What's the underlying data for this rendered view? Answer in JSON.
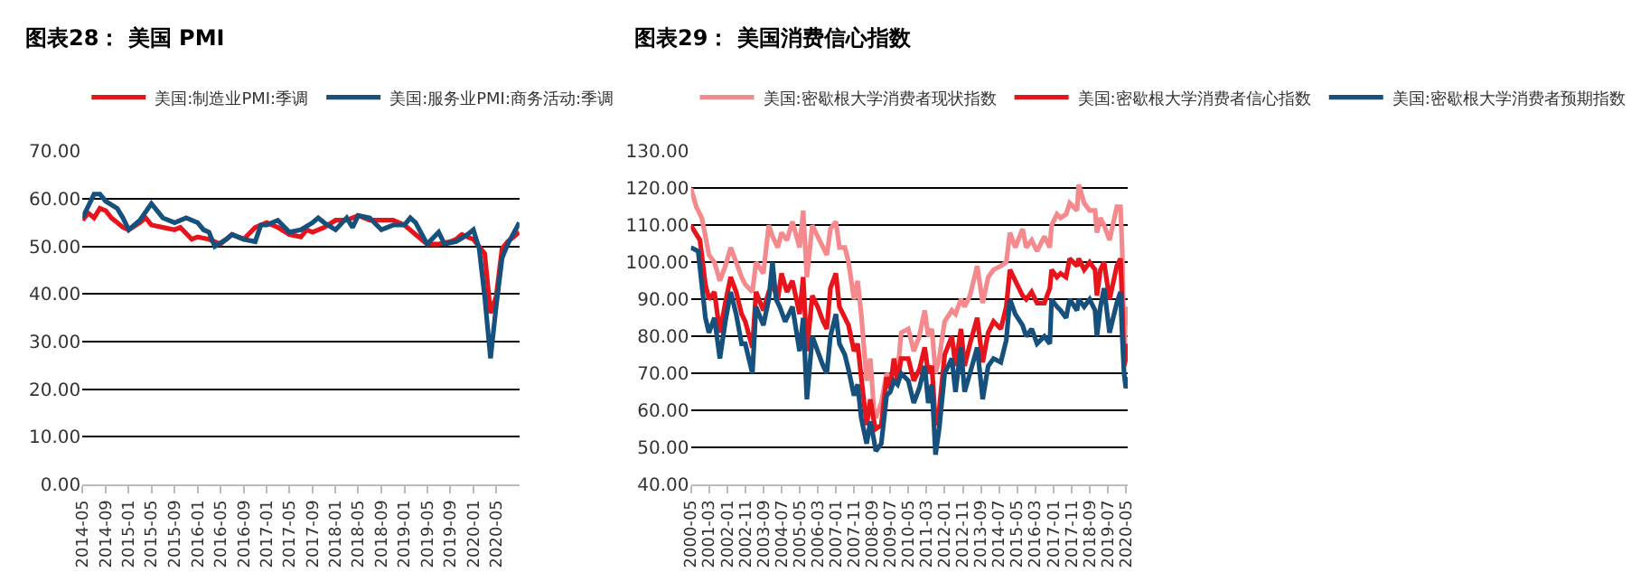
{
  "chart_data": [
    {
      "type": "line",
      "title": "图表28： 美国 PMI",
      "legend": "top",
      "grid": "y",
      "marker": "none",
      "line_style": "solid",
      "xlim": [
        "2014-05",
        "2020-09"
      ],
      "xticks": [
        "2014-05",
        "2014-09",
        "2015-01",
        "2015-05",
        "2015-09",
        "2016-01",
        "2016-05",
        "2016-09",
        "2017-01",
        "2017-05",
        "2017-09",
        "2018-01",
        "2018-05",
        "2018-09",
        "2019-01",
        "2019-05",
        "2019-09",
        "2020-01",
        "2020-05"
      ],
      "ylim": [
        0,
        70
      ],
      "yticks": [
        {
          "value": 0,
          "label": "0.00"
        },
        {
          "value": 10,
          "label": "10.00"
        },
        {
          "value": 20,
          "label": "20.00"
        },
        {
          "value": 30,
          "label": "30.00"
        },
        {
          "value": 40,
          "label": "40.00"
        },
        {
          "value": 50,
          "label": "50.00"
        },
        {
          "value": 60,
          "label": "60.00"
        },
        {
          "value": 70,
          "label": "70.00"
        }
      ],
      "series": [
        {
          "name": "美国:制造业PMI:季调",
          "color": "#e8141c",
          "x": [
            "2014-05",
            "2014-06",
            "2014-07",
            "2014-08",
            "2014-09",
            "2014-10",
            "2014-11",
            "2014-12",
            "2015-01",
            "2015-03",
            "2015-04",
            "2015-05",
            "2015-07",
            "2015-09",
            "2015-10",
            "2015-12",
            "2016-01",
            "2016-03",
            "2016-05",
            "2016-07",
            "2016-09",
            "2016-11",
            "2017-01",
            "2017-03",
            "2017-05",
            "2017-07",
            "2017-08",
            "2017-09",
            "2017-11",
            "2018-01",
            "2018-03",
            "2018-05",
            "2018-07",
            "2018-09",
            "2018-11",
            "2019-01",
            "2019-03",
            "2019-05",
            "2019-07",
            "2019-09",
            "2019-10",
            "2019-11",
            "2020-01",
            "2020-03",
            "2020-04",
            "2020-05",
            "2020-06",
            "2020-07",
            "2020-09"
          ],
          "values": [
            55.5,
            57,
            56,
            58,
            57.5,
            56,
            55,
            54,
            53.5,
            55,
            56,
            54.5,
            54,
            53.5,
            54,
            51.5,
            52,
            51.5,
            50.5,
            52.5,
            51.5,
            54,
            55,
            54,
            52.5,
            52,
            53.5,
            53,
            54,
            55.5,
            55.5,
            56.5,
            55.5,
            55.5,
            55.5,
            54.5,
            52.5,
            50.5,
            50.5,
            51,
            51.5,
            52.5,
            51.5,
            48.5,
            36,
            39.5,
            49.5,
            51,
            53
          ]
        },
        {
          "name": "美国:服务业PMI:商务活动:季调",
          "color": "#16507c",
          "x": [
            "2014-05",
            "2014-06",
            "2014-07",
            "2014-08",
            "2014-09",
            "2014-11",
            "2014-12",
            "2015-01",
            "2015-03",
            "2015-05",
            "2015-07",
            "2015-09",
            "2015-11",
            "2016-01",
            "2016-02",
            "2016-03",
            "2016-04",
            "2016-06",
            "2016-07",
            "2016-09",
            "2016-11",
            "2016-12",
            "2017-01",
            "2017-03",
            "2017-05",
            "2017-07",
            "2017-09",
            "2017-10",
            "2017-11",
            "2018-01",
            "2018-03",
            "2018-04",
            "2018-05",
            "2018-07",
            "2018-09",
            "2018-11",
            "2019-01",
            "2019-02",
            "2019-03",
            "2019-05",
            "2019-07",
            "2019-08",
            "2019-10",
            "2019-12",
            "2020-01",
            "2020-02",
            "2020-03",
            "2020-04",
            "2020-05",
            "2020-06",
            "2020-07",
            "2020-09"
          ],
          "values": [
            56,
            58.5,
            61,
            61,
            59.5,
            58,
            56,
            53.5,
            55.5,
            59,
            56,
            55,
            56,
            55,
            53.5,
            53,
            50,
            51.5,
            52.5,
            51.5,
            51,
            54.5,
            54.5,
            55.5,
            53,
            53.5,
            55,
            56,
            55,
            53.5,
            56,
            54,
            56.5,
            56,
            53.5,
            54.5,
            54.5,
            56,
            55,
            50.5,
            53,
            50.5,
            51,
            52.5,
            53.5,
            49.5,
            39.5,
            26.5,
            37.5,
            47.5,
            50.5,
            55
          ]
        }
      ]
    },
    {
      "type": "line",
      "title": "图表29： 美国消费信心指数",
      "legend": "top",
      "grid": "y",
      "marker": "none",
      "line_style": "solid",
      "xlim": [
        "2000-05",
        "2020-06"
      ],
      "xticks": [
        "2000-05",
        "2001-03",
        "2002-01",
        "2002-11",
        "2003-09",
        "2004-07",
        "2005-05",
        "2006-03",
        "2007-01",
        "2007-11",
        "2008-09",
        "2009-07",
        "2010-05",
        "2011-03",
        "2012-01",
        "2012-11",
        "2013-09",
        "2014-07",
        "2015-05",
        "2016-03",
        "2017-01",
        "2017-11",
        "2018-09",
        "2019-07",
        "2020-05"
      ],
      "ylim": [
        40,
        130
      ],
      "yticks": [
        {
          "value": 40,
          "label": "40.00"
        },
        {
          "value": 50,
          "label": "50.00"
        },
        {
          "value": 60,
          "label": "60.00"
        },
        {
          "value": 70,
          "label": "70.00"
        },
        {
          "value": 80,
          "label": "80.00"
        },
        {
          "value": 90,
          "label": "90.00"
        },
        {
          "value": 100,
          "label": "100.00"
        },
        {
          "value": 110,
          "label": "110.00"
        },
        {
          "value": 120,
          "label": "120.00"
        },
        {
          "value": 130,
          "label": "130.00"
        }
      ],
      "series": [
        {
          "name": "美国:密歇根大学消费者现状指数",
          "color": "#f48a8e",
          "x": [
            "2000-05",
            "2000-08",
            "2000-11",
            "2001-01",
            "2001-03",
            "2001-06",
            "2001-09",
            "2001-12",
            "2002-03",
            "2002-06",
            "2002-09",
            "2002-11",
            "2003-03",
            "2003-05",
            "2003-09",
            "2003-12",
            "2004-02",
            "2004-05",
            "2004-07",
            "2004-10",
            "2005-01",
            "2005-05",
            "2005-07",
            "2005-09",
            "2005-12",
            "2006-03",
            "2006-06",
            "2006-08",
            "2006-10",
            "2007-01",
            "2007-03",
            "2007-06",
            "2007-08",
            "2007-11",
            "2008-01",
            "2008-03",
            "2008-06",
            "2008-08",
            "2008-10",
            "2008-11",
            "2009-02",
            "2009-05",
            "2009-07",
            "2009-09",
            "2009-11",
            "2010-01",
            "2010-05",
            "2010-08",
            "2010-11",
            "2011-02",
            "2011-04",
            "2011-06",
            "2011-08",
            "2011-10",
            "2012-01",
            "2012-05",
            "2012-07",
            "2012-10",
            "2012-12",
            "2013-03",
            "2013-07",
            "2013-10",
            "2014-01",
            "2014-04",
            "2014-08",
            "2014-11",
            "2015-01",
            "2015-04",
            "2015-08",
            "2015-10",
            "2016-01",
            "2016-04",
            "2016-08",
            "2016-11",
            "2016-12",
            "2017-03",
            "2017-05",
            "2017-08",
            "2017-10",
            "2018-02",
            "2018-03",
            "2018-06",
            "2018-09",
            "2018-12",
            "2019-01",
            "2019-03",
            "2019-05",
            "2019-08",
            "2019-12",
            "2020-02",
            "2020-03",
            "2020-04",
            "2020-05",
            "2020-06"
          ],
          "values": [
            120,
            115,
            112,
            107,
            102,
            100,
            95,
            99,
            104,
            100,
            96,
            94,
            92,
            100,
            97,
            110,
            107,
            104,
            108,
            106,
            111,
            104,
            114,
            96,
            110,
            107,
            104,
            102,
            109,
            111,
            104,
            104,
            100,
            90,
            95,
            86,
            68,
            74,
            60,
            58,
            62,
            70,
            68,
            72,
            70,
            81,
            82,
            76,
            80,
            87,
            80,
            82,
            70,
            74,
            84,
            87,
            86,
            90,
            88,
            91,
            99,
            89,
            96,
            98,
            99,
            100,
            108,
            104,
            109,
            104,
            106,
            103,
            107,
            104,
            110,
            113,
            112,
            113,
            116,
            114,
            121,
            116,
            114,
            114,
            108,
            112,
            110,
            106,
            115,
            115,
            103,
            74,
            88,
            83
          ]
        },
        {
          "name": "美国:密歇根大学消费者信心指数",
          "color": "#e8141c",
          "x": [
            "2000-05",
            "2000-10",
            "2001-01",
            "2001-03",
            "2001-06",
            "2001-09",
            "2001-12",
            "2002-03",
            "2002-06",
            "2002-09",
            "2002-11",
            "2003-03",
            "2003-05",
            "2003-09",
            "2003-12",
            "2004-02",
            "2004-05",
            "2004-07",
            "2004-10",
            "2005-01",
            "2005-05",
            "2005-07",
            "2005-09",
            "2005-12",
            "2006-03",
            "2006-06",
            "2006-08",
            "2006-10",
            "2007-01",
            "2007-03",
            "2007-06",
            "2007-08",
            "2007-11",
            "2008-01",
            "2008-03",
            "2008-06",
            "2008-08",
            "2008-10",
            "2008-11",
            "2009-02",
            "2009-05",
            "2009-07",
            "2009-09",
            "2009-11",
            "2010-01",
            "2010-05",
            "2010-08",
            "2010-11",
            "2011-02",
            "2011-04",
            "2011-06",
            "2011-08",
            "2011-10",
            "2012-01",
            "2012-05",
            "2012-07",
            "2012-10",
            "2012-12",
            "2013-03",
            "2013-07",
            "2013-10",
            "2014-01",
            "2014-04",
            "2014-08",
            "2014-11",
            "2015-01",
            "2015-04",
            "2015-08",
            "2015-10",
            "2016-01",
            "2016-04",
            "2016-08",
            "2016-11",
            "2016-12",
            "2017-03",
            "2017-05",
            "2017-08",
            "2017-10",
            "2018-02",
            "2018-03",
            "2018-06",
            "2018-09",
            "2018-12",
            "2019-01",
            "2019-03",
            "2019-05",
            "2019-08",
            "2019-12",
            "2020-02",
            "2020-03",
            "2020-04",
            "2020-05",
            "2020-06"
          ],
          "values": [
            110,
            106,
            94,
            90,
            92,
            81,
            89,
            96,
            92,
            86,
            84,
            77,
            92,
            87,
            92,
            94,
            90,
            97,
            92,
            95,
            86,
            96,
            76,
            91,
            88,
            84,
            82,
            93,
            97,
            88,
            85,
            83,
            76,
            78,
            69,
            56,
            63,
            57,
            55,
            56,
            69,
            66,
            74,
            68,
            74,
            74,
            68,
            71,
            77,
            70,
            72,
            56,
            60,
            75,
            80,
            72,
            82,
            72,
            78,
            85,
            73,
            81,
            84,
            82,
            88,
            98,
            95,
            91,
            90,
            92,
            89,
            89,
            93,
            98,
            96,
            97,
            96,
            101,
            99,
            101,
            98,
            100,
            98,
            91,
            98,
            100,
            90,
            99,
            101,
            89,
            72,
            74,
            78
          ]
        },
        {
          "name": "美国:密歇根大学消费者预期指数",
          "color": "#16507c",
          "x": [
            "2000-05",
            "2000-09",
            "2001-01",
            "2001-03",
            "2001-06",
            "2001-09",
            "2001-12",
            "2002-03",
            "2002-06",
            "2002-09",
            "2002-11",
            "2003-03",
            "2003-05",
            "2003-09",
            "2003-12",
            "2004-02",
            "2004-04",
            "2004-06",
            "2004-09",
            "2005-01",
            "2005-05",
            "2005-07",
            "2005-09",
            "2005-12",
            "2006-03",
            "2006-06",
            "2006-08",
            "2006-10",
            "2007-01",
            "2007-03",
            "2007-06",
            "2007-08",
            "2007-11",
            "2008-01",
            "2008-03",
            "2008-06",
            "2008-08",
            "2008-10",
            "2008-11",
            "2009-02",
            "2009-05",
            "2009-07",
            "2009-09",
            "2009-11",
            "2010-01",
            "2010-05",
            "2010-08",
            "2010-11",
            "2011-02",
            "2011-04",
            "2011-06",
            "2011-08",
            "2011-10",
            "2012-01",
            "2012-05",
            "2012-07",
            "2012-10",
            "2012-12",
            "2013-03",
            "2013-07",
            "2013-10",
            "2014-01",
            "2014-04",
            "2014-08",
            "2014-11",
            "2015-01",
            "2015-04",
            "2015-08",
            "2015-10",
            "2016-01",
            "2016-04",
            "2016-08",
            "2016-11",
            "2016-12",
            "2017-03",
            "2017-05",
            "2017-08",
            "2017-10",
            "2018-02",
            "2018-03",
            "2018-06",
            "2018-09",
            "2018-12",
            "2019-01",
            "2019-03",
            "2019-05",
            "2019-08",
            "2019-12",
            "2020-02",
            "2020-03",
            "2020-04",
            "2020-05",
            "2020-06"
          ],
          "values": [
            104,
            103,
            85,
            81,
            85,
            74,
            84,
            92,
            86,
            78,
            78,
            70,
            88,
            83,
            90,
            100,
            90,
            88,
            84,
            88,
            76,
            85,
            63,
            80,
            76,
            72,
            70,
            80,
            86,
            78,
            75,
            71,
            64,
            67,
            58,
            51,
            57,
            52,
            49,
            51,
            64,
            65,
            68,
            67,
            70,
            68,
            62,
            66,
            72,
            62,
            67,
            48,
            55,
            70,
            74,
            65,
            77,
            65,
            70,
            77,
            63,
            72,
            74,
            73,
            79,
            90,
            86,
            83,
            80,
            82,
            78,
            80,
            78,
            90,
            88,
            87,
            85,
            90,
            87,
            90,
            88,
            90,
            87,
            80,
            88,
            93,
            81,
            89,
            92,
            80,
            70,
            66,
            69
          ]
        }
      ]
    }
  ]
}
